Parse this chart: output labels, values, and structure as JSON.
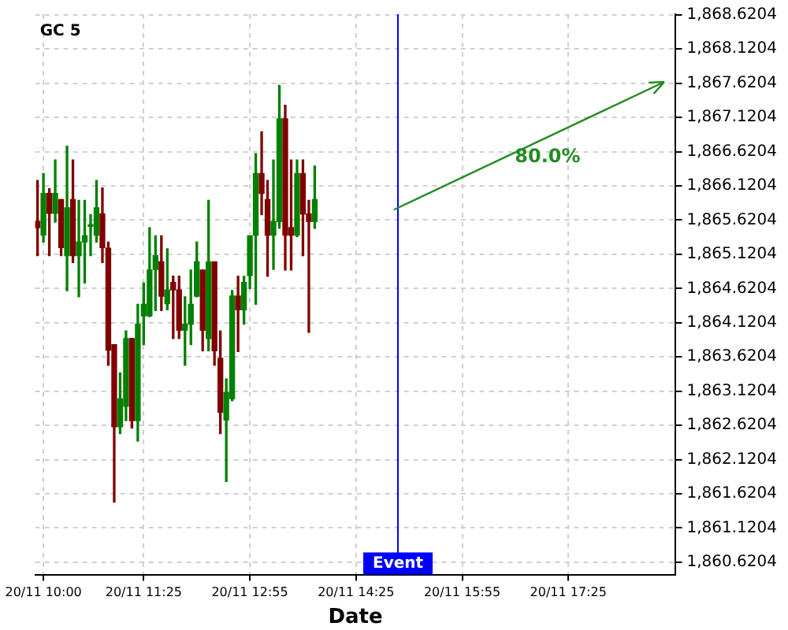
{
  "chart_data": {
    "type": "candlestick",
    "title": "GC 5",
    "xlabel": "Date",
    "x": [
      "--11-20T09:55",
      "--11-20T10:00",
      "--11-20T10:05",
      "--11-20T10:10",
      "--11-20T10:15",
      "--11-20T10:20",
      "--11-20T10:25",
      "--11-20T10:30",
      "--11-20T10:35",
      "--11-20T10:40",
      "--11-20T10:45",
      "--11-20T10:50",
      "--11-20T10:55",
      "--11-20T11:00",
      "--11-20T11:05",
      "--11-20T11:10",
      "--11-20T11:15",
      "--11-20T11:20",
      "--11-20T11:25",
      "--11-20T11:30",
      "--11-20T11:35",
      "--11-20T11:40",
      "--11-20T11:45",
      "--11-20T11:50",
      "--11-20T11:55",
      "--11-20T12:00",
      "--11-20T12:05",
      "--11-20T12:10",
      "--11-20T12:15",
      "--11-20T12:20",
      "--11-20T12:25",
      "--11-20T12:30",
      "--11-20T12:35",
      "--11-20T12:40",
      "--11-20T12:45",
      "--11-20T12:50",
      "--11-20T12:55",
      "--11-20T13:00",
      "--11-20T13:05",
      "--11-20T13:10",
      "--11-20T13:15",
      "--11-20T13:20",
      "--11-20T13:25",
      "--11-20T13:30",
      "--11-20T13:35",
      "--11-20T13:40",
      "--11-20T13:45",
      "--11-20T13:50"
    ],
    "ohlc": [
      [
        1865.6,
        1866.2,
        1865.1,
        1865.51
      ],
      [
        1865.4,
        1866.3,
        1865.3,
        1866.01
      ],
      [
        1866.01,
        1866.08,
        1865.1,
        1865.72
      ],
      [
        1865.72,
        1866.5,
        1865.59,
        1866.01
      ],
      [
        1865.92,
        1865.92,
        1865.1,
        1865.22
      ],
      [
        1865.1,
        1866.7,
        1864.59,
        1865.8
      ],
      [
        1865.92,
        1866.5,
        1865.0,
        1865.1
      ],
      [
        1865.1,
        1865.91,
        1864.5,
        1865.3
      ],
      [
        1865.3,
        1865.91,
        1864.7,
        1865.39
      ],
      [
        1865.53,
        1865.7,
        1865.1,
        1865.54
      ],
      [
        1865.4,
        1866.2,
        1865.3,
        1865.8
      ],
      [
        1865.71,
        1866.09,
        1865.0,
        1865.22
      ],
      [
        1865.21,
        1865.3,
        1863.5,
        1863.72
      ],
      [
        1863.8,
        1863.8,
        1861.5,
        1862.6
      ],
      [
        1862.6,
        1863.39,
        1862.5,
        1863.01
      ],
      [
        1862.9,
        1864.0,
        1862.69,
        1863.89
      ],
      [
        1863.89,
        1863.89,
        1862.58,
        1862.69
      ],
      [
        1862.69,
        1864.39,
        1862.39,
        1864.1
      ],
      [
        1864.22,
        1864.7,
        1863.8,
        1864.39
      ],
      [
        1864.22,
        1865.51,
        1864.21,
        1864.89
      ],
      [
        1864.9,
        1865.39,
        1864.3,
        1865.1
      ],
      [
        1865.01,
        1865.39,
        1864.3,
        1864.51
      ],
      [
        1864.4,
        1865.2,
        1864.31,
        1864.6
      ],
      [
        1864.71,
        1864.8,
        1863.89,
        1864.6
      ],
      [
        1864.6,
        1864.8,
        1863.89,
        1864.01
      ],
      [
        1864.01,
        1864.5,
        1863.5,
        1864.1
      ],
      [
        1864.1,
        1864.89,
        1863.8,
        1864.39
      ],
      [
        1864.51,
        1865.3,
        1864.5,
        1865.01
      ],
      [
        1864.89,
        1864.89,
        1863.71,
        1864.01
      ],
      [
        1863.89,
        1865.91,
        1863.71,
        1865.01
      ],
      [
        1865.01,
        1865.01,
        1863.5,
        1863.71
      ],
      [
        1863.6,
        1864.0,
        1862.5,
        1862.81
      ],
      [
        1862.7,
        1863.3,
        1861.8,
        1863.1
      ],
      [
        1863.01,
        1864.59,
        1862.98,
        1864.51
      ],
      [
        1864.51,
        1864.8,
        1863.7,
        1864.31
      ],
      [
        1864.31,
        1864.8,
        1864.1,
        1864.71
      ],
      [
        1864.81,
        1865.39,
        1864.62,
        1865.39
      ],
      [
        1865.4,
        1866.59,
        1864.39,
        1866.3
      ],
      [
        1866.3,
        1866.91,
        1865.7,
        1866.01
      ],
      [
        1865.92,
        1866.2,
        1864.8,
        1865.4
      ],
      [
        1865.4,
        1866.5,
        1864.9,
        1865.6
      ],
      [
        1865.6,
        1867.59,
        1865.5,
        1867.1
      ],
      [
        1867.1,
        1867.3,
        1864.89,
        1865.4
      ],
      [
        1865.51,
        1866.5,
        1864.89,
        1865.4
      ],
      [
        1865.4,
        1866.5,
        1865.38,
        1866.3
      ],
      [
        1866.3,
        1866.5,
        1865.1,
        1865.71
      ],
      [
        1865.71,
        1865.91,
        1863.98,
        1865.6
      ],
      [
        1865.6,
        1866.41,
        1865.5,
        1865.92
      ]
    ],
    "colors": [
      "#800000",
      "#008000",
      "#800000",
      "#008000",
      "#800000",
      "#008000",
      "#800000",
      "#008000",
      "#008000",
      "#008000",
      "#008000",
      "#800000",
      "#800000",
      "#800000",
      "#008000",
      "#008000",
      "#800000",
      "#008000",
      "#008000",
      "#008000",
      "#008000",
      "#800000",
      "#008000",
      "#800000",
      "#800000",
      "#008000",
      "#008000",
      "#008000",
      "#800000",
      "#008000",
      "#800000",
      "#800000",
      "#008000",
      "#008000",
      "#800000",
      "#008000",
      "#008000",
      "#008000",
      "#800000",
      "#800000",
      "#008000",
      "#008000",
      "#800000",
      "#800000",
      "#008000",
      "#800000",
      "#800000",
      "#008000"
    ],
    "annotations": [
      "80.0%"
    ],
    "ref_lines": [
      {
        "axis": "x",
        "value": "--11-20T15:00",
        "label": "Event",
        "color": "#0000ff"
      }
    ],
    "xlim": [
      "--11-20T09:53",
      "--11-20T18:56"
    ],
    "xticks": [
      {
        "value": "--11-20T10:00",
        "label": "20/11 10:00"
      },
      {
        "value": "--11-20T11:25",
        "label": "20/11 11:25"
      },
      {
        "value": "--11-20T12:55",
        "label": "20/11 12:55"
      },
      {
        "value": "--11-20T14:25",
        "label": "20/11 14:25"
      },
      {
        "value": "--11-20T15:55",
        "label": "20/11 15:55"
      },
      {
        "value": "--11-20T17:25",
        "label": "20/11 17:25"
      }
    ],
    "ylim": [
      1860.44,
      1868.63
    ],
    "yticks": [
      {
        "value": 1860.6204,
        "label": "1,860.6204"
      },
      {
        "value": 1861.1204,
        "label": "1,861.1204"
      },
      {
        "value": 1861.6204,
        "label": "1,861.6204"
      },
      {
        "value": 1862.1204,
        "label": "1,862.1204"
      },
      {
        "value": 1862.6204,
        "label": "1,862.6204"
      },
      {
        "value": 1863.1204,
        "label": "1,863.1204"
      },
      {
        "value": 1863.6204,
        "label": "1,863.6204"
      },
      {
        "value": 1864.1204,
        "label": "1,864.1204"
      },
      {
        "value": 1864.6204,
        "label": "1,864.6204"
      },
      {
        "value": 1865.1204,
        "label": "1,865.1204"
      },
      {
        "value": 1865.6204,
        "label": "1,865.6204"
      },
      {
        "value": 1866.1204,
        "label": "1,866.1204"
      },
      {
        "value": 1866.6204,
        "label": "1,866.6204"
      },
      {
        "value": 1867.1204,
        "label": "1,867.1204"
      },
      {
        "value": 1867.6204,
        "label": "1,867.6204"
      },
      {
        "value": 1868.1204,
        "label": "1,868.1204"
      },
      {
        "value": 1868.6204,
        "label": "1,868.6204"
      }
    ],
    "grid": true
  }
}
